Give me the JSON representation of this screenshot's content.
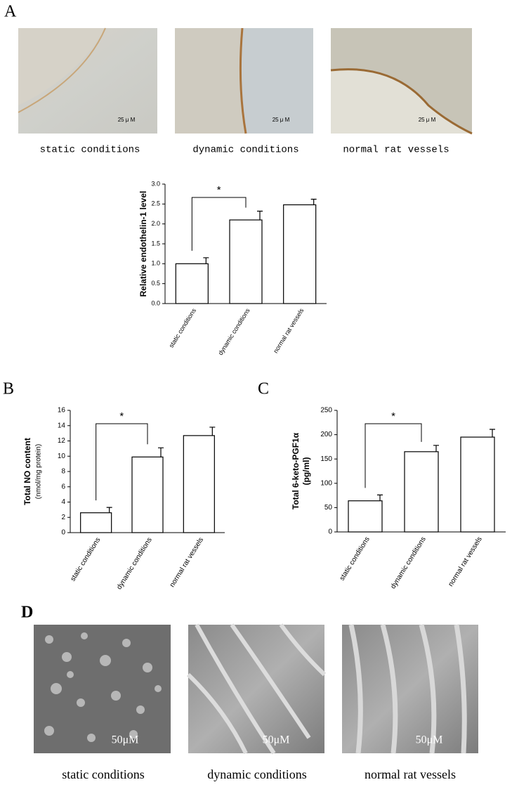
{
  "panel_labels": [
    "A",
    "B",
    "C",
    "D"
  ],
  "stained_sections": [
    {
      "scale": "25 μ M",
      "caption": "static conditions"
    },
    {
      "scale": "25 μ M",
      "caption": "dynamic conditions"
    },
    {
      "scale": "25 μ M",
      "caption": "normal rat vessels"
    }
  ],
  "sem_images": [
    {
      "scale": "50μM",
      "caption": "static conditions"
    },
    {
      "scale": "50μM",
      "caption": "dynamic conditions"
    },
    {
      "scale": "50μM",
      "caption": "normal rat vessels"
    }
  ],
  "chart_data": [
    {
      "type": "bar",
      "ylabel": "Relative endothelin-1 level",
      "categories": [
        "static conditions",
        "dynamic conditions",
        "normal rat vessels"
      ],
      "values": [
        1.0,
        2.1,
        2.48
      ],
      "errors": [
        0.15,
        0.22,
        0.14
      ],
      "color": "#ffffff",
      "ylim": [
        0,
        3
      ],
      "yticks": [
        {
          "value": 0,
          "label": "0.0"
        },
        0.5,
        {
          "value": 1,
          "label": "1.0"
        },
        1.5,
        {
          "value": 2,
          "label": "2.0"
        },
        2.5,
        {
          "value": 3,
          "label": "3.0"
        }
      ],
      "annotation": "*"
    },
    {
      "type": "bar",
      "ylabel": "Total NO content",
      "ylabel_sub": "(nmol/mg protein)",
      "categories": [
        "static conditions",
        "dynamic conditions",
        "normal rat vessels"
      ],
      "values": [
        2.6,
        9.9,
        12.7
      ],
      "errors": [
        0.7,
        1.2,
        1.1
      ],
      "color": "#ffffff",
      "ylim": [
        0,
        16
      ],
      "yticks": [
        0,
        2,
        4,
        6,
        8,
        10,
        12,
        14,
        16
      ],
      "annotation": "*"
    },
    {
      "type": "bar",
      "ylabel": "Total 6-keto-PGF1α",
      "ylabel_sub": "(pg/ml)",
      "categories": [
        "static conditions",
        "dynamic conditions",
        "normal rat vessels"
      ],
      "values": [
        64,
        165,
        195
      ],
      "errors": [
        12,
        13,
        16
      ],
      "color": "#ffffff",
      "ylim": [
        0,
        250
      ],
      "yticks": [
        0,
        50,
        100,
        150,
        200,
        250
      ],
      "annotation": "*"
    }
  ]
}
